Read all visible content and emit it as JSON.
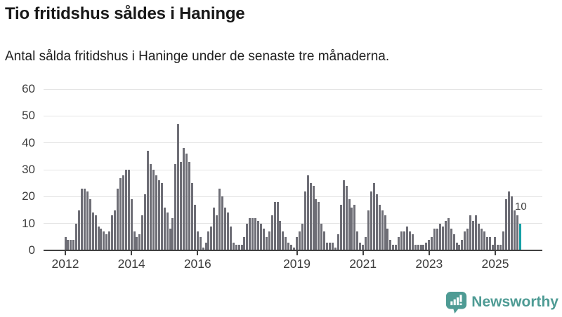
{
  "header": {
    "title": "Tio fritidshus såldes i Haninge",
    "subtitle": "Antal sålda fritidshus i Haninge under de senaste tre månaderna."
  },
  "chart_data": {
    "type": "bar",
    "title": "Tio fritidshus såldes i Haninge",
    "xlabel": "",
    "ylabel": "",
    "x_unit": "month",
    "x_start": "2012-01",
    "x_end": "2025-10",
    "ylim": [
      0,
      60
    ],
    "grid": true,
    "y_ticks": [
      0,
      10,
      20,
      30,
      40,
      50,
      60
    ],
    "x_ticks": [
      {
        "label": "2012",
        "month_index": 0
      },
      {
        "label": "2014",
        "month_index": 24
      },
      {
        "label": "2016",
        "month_index": 48
      },
      {
        "label": "2019",
        "month_index": 84
      },
      {
        "label": "2021",
        "month_index": 108
      },
      {
        "label": "2023",
        "month_index": 132
      },
      {
        "label": "2025",
        "month_index": 156
      }
    ],
    "values": [
      5,
      4,
      4,
      4,
      10,
      15,
      23,
      23,
      22,
      19,
      14,
      13,
      9,
      8,
      7,
      6,
      7,
      13,
      15,
      23,
      27,
      28,
      30,
      30,
      19,
      7,
      5,
      6,
      13,
      21,
      37,
      32,
      30,
      28,
      26,
      25,
      16,
      14,
      8,
      12,
      32,
      47,
      33,
      38,
      36,
      33,
      25,
      17,
      7,
      5,
      1,
      3,
      7,
      9,
      16,
      13,
      23,
      20,
      16,
      14,
      9,
      3,
      2,
      2,
      2,
      5,
      10,
      12,
      12,
      12,
      11,
      10,
      8,
      5,
      7,
      13,
      18,
      18,
      11,
      7,
      5,
      3,
      2,
      1,
      5,
      7,
      10,
      22,
      28,
      25,
      24,
      19,
      18,
      10,
      7,
      3,
      3,
      3,
      1,
      6,
      17,
      26,
      24,
      19,
      16,
      17,
      7,
      3,
      2,
      5,
      15,
      22,
      25,
      21,
      17,
      15,
      13,
      8,
      4,
      2,
      2,
      5,
      7,
      7,
      9,
      7,
      6,
      2,
      2,
      2,
      2,
      3,
      4,
      5,
      8,
      8,
      10,
      9,
      11,
      12,
      8,
      6,
      3,
      2,
      4,
      7,
      8,
      13,
      11,
      13,
      10,
      8,
      7,
      5,
      5,
      2,
      5,
      2,
      2,
      7,
      19,
      22,
      20,
      15,
      13,
      10
    ],
    "highlight_last": true,
    "annotation": {
      "text": "10",
      "target": "last-bar"
    },
    "colors": {
      "bar": "#6e6e76",
      "highlight": "#14a0a6",
      "grid": "#e4e4e4",
      "axis": "#414141",
      "label": "#3d3d3d"
    }
  },
  "footer": {
    "brand": "Newsworthy",
    "logo_icon": "newsworthy-speech-bubble-barchart-icon",
    "brand_color": "#4e9b94"
  }
}
